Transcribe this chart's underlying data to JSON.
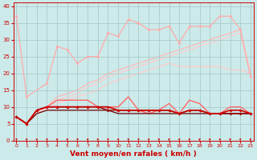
{
  "bg_color": "#cceaea",
  "grid_color": "#aacccc",
  "xlabel": "Vent moyen/en rafales ( km/h )",
  "xlabel_color": "#cc0000",
  "xlabel_fontsize": 6.5,
  "tick_color": "#cc0000",
  "yticks": [
    0,
    5,
    10,
    15,
    20,
    25,
    30,
    35,
    40
  ],
  "xticks": [
    0,
    1,
    2,
    3,
    4,
    5,
    6,
    7,
    8,
    9,
    10,
    11,
    12,
    13,
    14,
    15,
    16,
    17,
    18,
    19,
    20,
    21,
    22,
    23
  ],
  "ylim": [
    0,
    41
  ],
  "xlim": [
    -0.3,
    23.3
  ],
  "series": [
    {
      "x": [
        0,
        1,
        3,
        4,
        5,
        6,
        7,
        8,
        9,
        10,
        11,
        12,
        13,
        14,
        15,
        16,
        17,
        18,
        19,
        20,
        21,
        22,
        23
      ],
      "y": [
        37,
        13,
        17,
        28,
        27,
        23,
        25,
        25,
        32,
        31,
        36,
        35,
        33,
        33,
        34,
        29,
        34,
        34,
        34,
        37,
        37,
        33,
        19
      ],
      "color": "#ffaaaa",
      "lw": 0.9,
      "marker": "D",
      "ms": 2.0,
      "zorder": 2
    },
    {
      "x": [
        0,
        1,
        2,
        3,
        4,
        5,
        6,
        7,
        8,
        9,
        10,
        11,
        12,
        13,
        14,
        15,
        16,
        17,
        18,
        19,
        20,
        21,
        22,
        23
      ],
      "y": [
        7,
        5,
        8,
        10,
        13,
        14,
        15,
        17,
        18,
        20,
        21,
        22,
        23,
        24,
        25,
        26,
        27,
        28,
        29,
        30,
        31,
        32,
        33,
        20
      ],
      "color": "#ffbbbb",
      "lw": 1.0,
      "marker": null,
      "ms": 0,
      "zorder": 1
    },
    {
      "x": [
        0,
        1,
        2,
        3,
        4,
        5,
        6,
        7,
        8,
        9,
        10,
        11,
        12,
        13,
        14,
        15,
        16,
        17,
        18,
        19,
        20,
        21,
        22,
        23
      ],
      "y": [
        7,
        5,
        8,
        10,
        12,
        13,
        14,
        16,
        17,
        19,
        20,
        21,
        22,
        23,
        24,
        25,
        26,
        27,
        28,
        29,
        30,
        31,
        32,
        20
      ],
      "color": "#ffcccc",
      "lw": 1.0,
      "marker": null,
      "ms": 0,
      "zorder": 1
    },
    {
      "x": [
        0,
        1,
        2,
        3,
        4,
        5,
        6,
        7,
        8,
        9,
        10,
        11,
        12,
        13,
        14,
        15,
        16,
        17,
        18,
        19,
        20,
        21,
        22,
        23
      ],
      "y": [
        7,
        5,
        8,
        9,
        11,
        12,
        13,
        14,
        15,
        17,
        18,
        19,
        20,
        21,
        22,
        23,
        22,
        22,
        22,
        22,
        22,
        21,
        21,
        20
      ],
      "color": "#ffcccc",
      "lw": 1.0,
      "marker": null,
      "ms": 0,
      "zorder": 1
    },
    {
      "x": [
        0,
        1,
        2,
        3,
        4,
        5,
        6,
        7,
        8,
        9,
        10,
        11,
        12,
        13,
        14,
        15,
        16,
        17,
        18,
        19,
        20,
        21,
        22,
        23
      ],
      "y": [
        7,
        5,
        9,
        10,
        12,
        12,
        12,
        12,
        10,
        10,
        10,
        13,
        9,
        8,
        9,
        11,
        8,
        12,
        11,
        8,
        8,
        10,
        10,
        8
      ],
      "color": "#ff6666",
      "lw": 1.0,
      "marker": "+",
      "ms": 3.5,
      "zorder": 3
    },
    {
      "x": [
        0,
        1,
        2,
        3,
        4,
        5,
        6,
        7,
        8,
        9,
        10,
        11,
        12,
        13,
        14,
        15,
        16,
        17,
        18,
        19,
        20,
        21,
        22,
        23
      ],
      "y": [
        7,
        5,
        9,
        10,
        10,
        10,
        10,
        10,
        10,
        10,
        9,
        9,
        9,
        9,
        9,
        9,
        8,
        9,
        9,
        8,
        8,
        9,
        9,
        8
      ],
      "color": "#cc0000",
      "lw": 1.2,
      "marker": "D",
      "ms": 2.0,
      "zorder": 5
    },
    {
      "x": [
        0,
        1,
        2,
        3,
        4,
        5,
        6,
        7,
        8,
        9,
        10,
        11,
        12,
        13,
        14,
        15,
        16,
        17,
        18,
        19,
        20,
        21,
        22,
        23
      ],
      "y": [
        7,
        5,
        9,
        10,
        10,
        10,
        10,
        10,
        10,
        9,
        9,
        9,
        9,
        9,
        9,
        9,
        8,
        9,
        9,
        8,
        8,
        8,
        8,
        8
      ],
      "color": "#990000",
      "lw": 1.0,
      "marker": "D",
      "ms": 2.0,
      "zorder": 4
    },
    {
      "x": [
        0,
        1,
        2,
        3,
        4,
        5,
        6,
        7,
        8,
        9,
        10,
        11,
        12,
        13,
        14,
        15,
        16,
        17,
        18,
        19,
        20,
        21,
        22,
        23
      ],
      "y": [
        7,
        5,
        8,
        9,
        9,
        9,
        9,
        9,
        9,
        9,
        8,
        8,
        8,
        8,
        8,
        8,
        8,
        8,
        8,
        8,
        8,
        8,
        8,
        8
      ],
      "color": "#660000",
      "lw": 0.9,
      "marker": null,
      "ms": 0,
      "zorder": 3
    }
  ],
  "arrows": {
    "color": "#cc0000",
    "positions": [
      0,
      1,
      2,
      3,
      4,
      5,
      6,
      7,
      8,
      9,
      10,
      11,
      12,
      13,
      14,
      15,
      16,
      17,
      18,
      19,
      20,
      21,
      22,
      23
    ]
  }
}
